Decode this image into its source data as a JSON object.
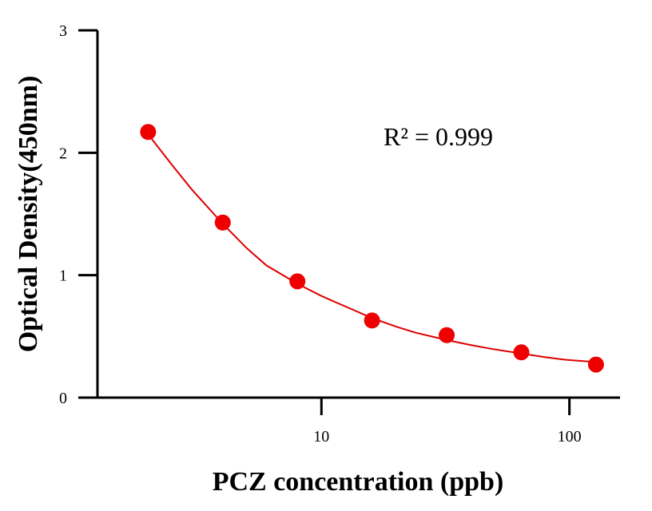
{
  "chart_data": {
    "type": "scatter",
    "xlabel": "PCZ concentration (ppb)",
    "ylabel": "Optical Density(450nm)",
    "xscale": "log",
    "xlim": [
      1.25,
      160
    ],
    "ylim": [
      0,
      3
    ],
    "xticks": [
      {
        "value": 10,
        "label": "10"
      },
      {
        "value": 100,
        "label": "100"
      }
    ],
    "yticks": [
      {
        "value": 0,
        "label": "0"
      },
      {
        "value": 1,
        "label": "1"
      },
      {
        "value": 2,
        "label": "2"
      },
      {
        "value": 3,
        "label": "3"
      }
    ],
    "annotation": "R² = 0.999",
    "grid": false,
    "series": [
      {
        "color": "#ee0000",
        "x": [
          2,
          4,
          8,
          16,
          32,
          64,
          128
        ],
        "y": [
          2.17,
          1.43,
          0.95,
          0.63,
          0.51,
          0.37,
          0.27
        ]
      }
    ],
    "fit": {
      "color": "#dd0000",
      "x": [
        2,
        2.5,
        3,
        4,
        5,
        6,
        8,
        10,
        12,
        16,
        20,
        24,
        32,
        40,
        48,
        64,
        80,
        96,
        128
      ],
      "y": [
        2.15,
        1.9,
        1.7,
        1.42,
        1.22,
        1.08,
        0.93,
        0.83,
        0.76,
        0.65,
        0.58,
        0.53,
        0.47,
        0.43,
        0.4,
        0.36,
        0.33,
        0.31,
        0.29
      ]
    }
  }
}
